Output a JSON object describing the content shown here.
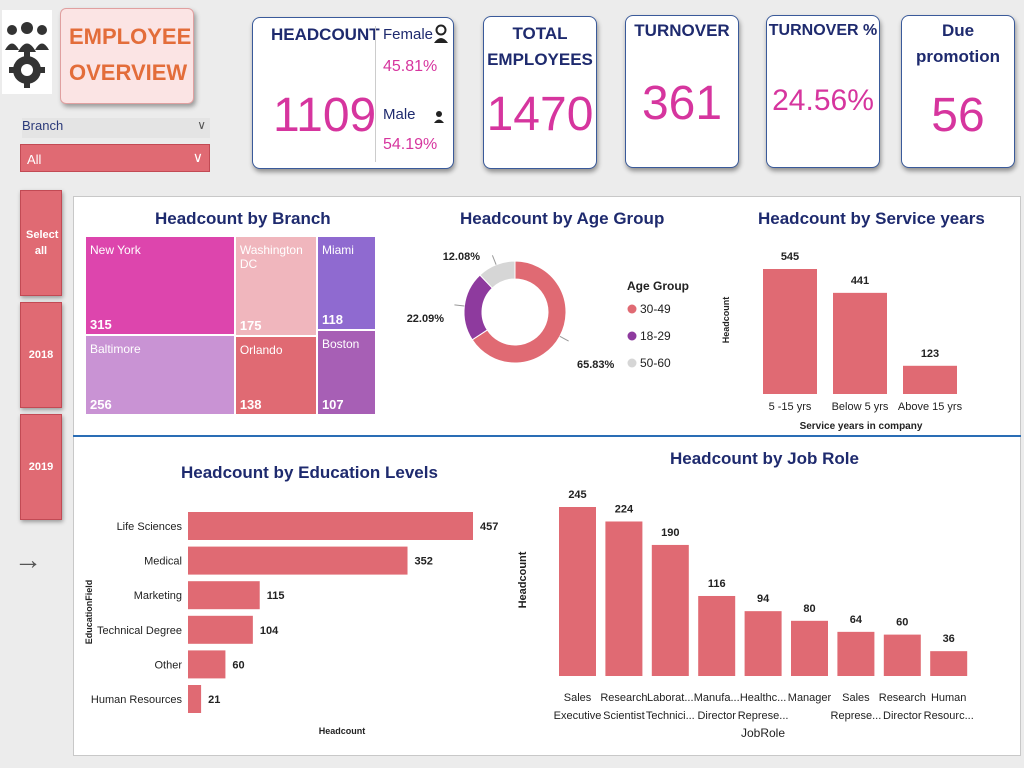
{
  "header": {
    "title_line1": "EMPLOYEE",
    "title_line2": "OVERVIEW",
    "logo_icon": "employees-gear-icon"
  },
  "filters": {
    "branch_label": "Branch",
    "branch_value": "All",
    "buttons": [
      "Select all",
      "2018",
      "2019"
    ],
    "arrow_icon": "arrow-right-icon"
  },
  "kpis": {
    "headcount": {
      "label": "HEADCOUNT",
      "value": "1109",
      "female_label": "Female",
      "female_pct": "45.81%",
      "male_label": "Male",
      "male_pct": "54.19%"
    },
    "total_employees": {
      "label_line1": "TOTAL",
      "label_line2": "EMPLOYEES",
      "value": "1470"
    },
    "turnover": {
      "label": "TURNOVER",
      "value": "361"
    },
    "turnover_pct": {
      "label": "TURNOVER %",
      "value": "24.56%"
    },
    "due_promotion": {
      "label_line1": "Due",
      "label_line2": "promotion",
      "value": "56"
    }
  },
  "colors": {
    "accent": "#e06a73",
    "kpi_value": "#d6359e",
    "title": "#1e2a6e",
    "divider": "#2a6db5"
  },
  "chart_data": [
    {
      "type": "treemap",
      "title": "Headcount by Branch",
      "categories": [
        "New York",
        "Washington DC",
        "Miami",
        "Baltimore",
        "Orlando",
        "Boston"
      ],
      "values": [
        315,
        175,
        118,
        256,
        138,
        107
      ],
      "colors": [
        "#dd45ad",
        "#f0b6bd",
        "#8f6ad0",
        "#c993d4",
        "#e06a73",
        "#a75fb5"
      ]
    },
    {
      "type": "pie",
      "title": "Headcount by Age Group",
      "legend_title": "Age Group",
      "categories": [
        "30-49",
        "18-29",
        "50-60"
      ],
      "values": [
        65.83,
        22.09,
        12.08
      ],
      "labels": [
        "65.83%",
        "22.09%",
        "12.08%"
      ],
      "colors": [
        "#e06a73",
        "#8e3a9e",
        "#d6d6d6"
      ]
    },
    {
      "type": "bar",
      "title": "Headcount by Service years",
      "categories": [
        "5 -15 yrs",
        "Below 5 yrs",
        "Above 15 yrs"
      ],
      "values": [
        545,
        441,
        123
      ],
      "xlabel": "Service years in company",
      "ylabel": "Headcount"
    },
    {
      "type": "bar",
      "orientation": "horizontal",
      "title": "Headcount by Education Levels",
      "categories": [
        "Life Sciences",
        "Medical",
        "Marketing",
        "Technical Degree",
        "Other",
        "Human Resources"
      ],
      "values": [
        457,
        352,
        115,
        104,
        60,
        21
      ],
      "xlabel": "Headcount",
      "ylabel": "EducationField"
    },
    {
      "type": "bar",
      "title": "Headcount by Job Role",
      "categories": [
        [
          "Sales",
          "Executive"
        ],
        [
          "Research",
          "Scientist"
        ],
        [
          "Laborat...",
          "Technici..."
        ],
        [
          "Manufa...",
          "Director"
        ],
        [
          "Healthc...",
          "Represe..."
        ],
        [
          "Manager",
          ""
        ],
        [
          "Sales",
          "Represe..."
        ],
        [
          "Research",
          "Director"
        ],
        [
          "Human",
          "Resourc..."
        ]
      ],
      "values": [
        245,
        224,
        190,
        116,
        94,
        80,
        64,
        60,
        36
      ],
      "xlabel": "JobRole",
      "ylabel": "Headcount"
    }
  ]
}
